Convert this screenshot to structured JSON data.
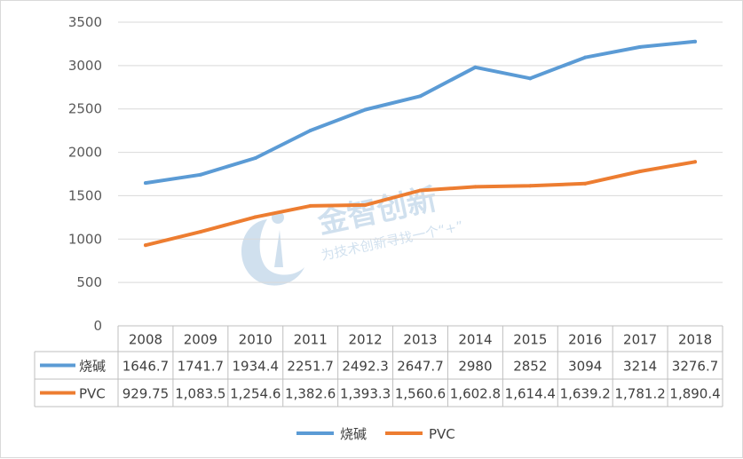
{
  "watermark": {
    "brand": "金智创新",
    "slogan": "为技术创新寻找一个“+”"
  },
  "chart_data": {
    "type": "line",
    "categories": [
      "2008",
      "2009",
      "2010",
      "2011",
      "2012",
      "2013",
      "2014",
      "2015",
      "2016",
      "2017",
      "2018"
    ],
    "ylim": [
      0,
      3500
    ],
    "yticks": [
      0,
      500,
      1000,
      1500,
      2000,
      2500,
      3000,
      3500
    ],
    "grid": true,
    "legend": "bottom",
    "data_table": true,
    "series": [
      {
        "name": "烧碱",
        "color": "#5b9bd5",
        "values": [
          1646.7,
          1741.7,
          1934.4,
          2251.7,
          2492.3,
          2647.7,
          2980,
          2852,
          3094,
          3214,
          3276.7
        ],
        "labels": [
          "1646.7",
          "1741.7",
          "1934.4",
          "2251.7",
          "2492.3",
          "2647.7",
          "2980",
          "2852",
          "3094",
          "3214",
          "3276.7"
        ]
      },
      {
        "name": "PVC",
        "color": "#ed7d31",
        "values": [
          929.75,
          1083.5,
          1254.6,
          1382.6,
          1393.3,
          1560.6,
          1602.8,
          1614.4,
          1639.2,
          1781.2,
          1890.4
        ],
        "labels": [
          "929.75",
          "1,083.5",
          "1,254.6",
          "1,382.6",
          "1,393.3",
          "1,560.6",
          "1,602.8",
          "1,614.4",
          "1,639.2",
          "1,781.2",
          "1,890.4"
        ]
      }
    ]
  }
}
